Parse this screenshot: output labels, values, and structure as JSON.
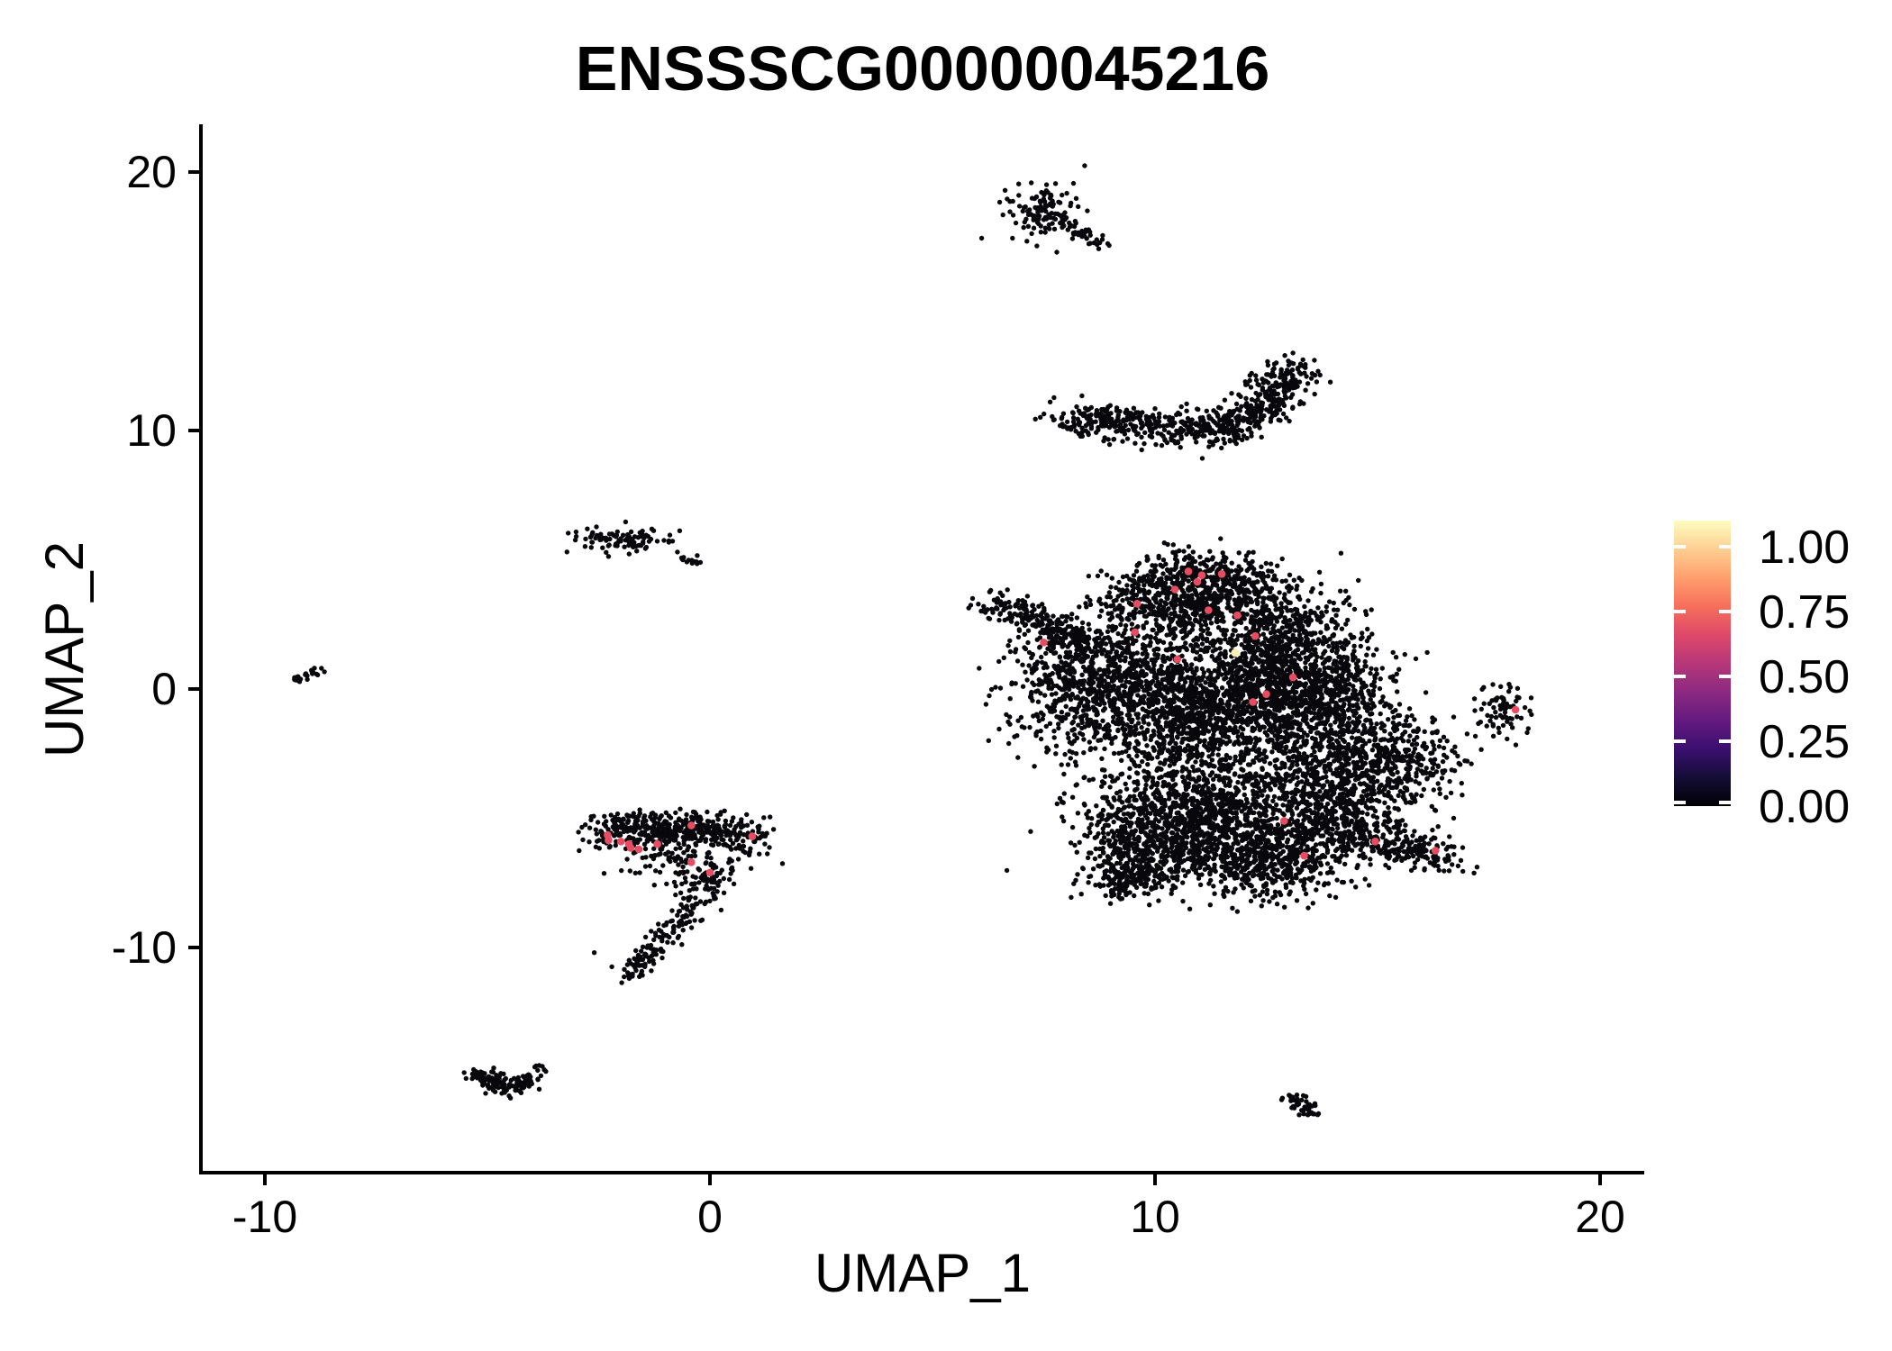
{
  "title": "ENSSSCG00000045216",
  "axes": {
    "x_label": "UMAP_1",
    "y_label": "UMAP_2",
    "x_tick_labels": [
      "-10",
      "0",
      "10",
      "20"
    ],
    "y_tick_labels": [
      "20",
      "10",
      "0",
      "-10"
    ]
  },
  "legend": {
    "tick_labels": [
      "1.00",
      "0.75",
      "0.50",
      "0.25",
      "0.00"
    ]
  },
  "chart_data": {
    "type": "scatter",
    "title": "ENSSSCG00000045216",
    "xlabel": "UMAP_1",
    "ylabel": "UMAP_2",
    "xlim": [
      -11.4,
      21.0
    ],
    "ylim": [
      -18.8,
      21.8
    ],
    "x_tick_values": [
      -10,
      0,
      10,
      20
    ],
    "y_tick_values": [
      20,
      10,
      0,
      -10
    ],
    "grid": false,
    "legend_position": "right",
    "colorbar": {
      "tick_values": [
        1.0,
        0.75,
        0.5,
        0.25,
        0.0
      ],
      "top_value": 1.1,
      "palette": "magma",
      "stops": [
        "#000004",
        "#140e36",
        "#3b0f70",
        "#641a80",
        "#8c2981",
        "#b73779",
        "#de4968",
        "#f76f5c",
        "#fe9f6d",
        "#fecf92",
        "#fcfdbf"
      ]
    },
    "base_point_color": "#08080c",
    "highlight_color": "#E84C62",
    "max_expression_point": {
      "xy": [
        11.8,
        1.4
      ],
      "color": "#FBF2B0",
      "value": 1.0
    },
    "highlighted_points": [
      [
        10.75,
        4.55
      ],
      [
        10.95,
        4.15
      ],
      [
        11.05,
        4.4
      ],
      [
        11.5,
        4.45
      ],
      [
        10.45,
        3.85
      ],
      [
        9.6,
        3.3
      ],
      [
        11.2,
        3.05
      ],
      [
        11.85,
        2.85
      ],
      [
        12.25,
        2.05
      ],
      [
        13.1,
        0.45
      ],
      [
        12.5,
        -0.2
      ],
      [
        12.2,
        -0.5
      ],
      [
        7.5,
        1.8
      ],
      [
        9.55,
        2.2
      ],
      [
        10.5,
        1.15
      ],
      [
        12.9,
        -5.1
      ],
      [
        14.95,
        -5.9
      ],
      [
        13.35,
        -6.45
      ],
      [
        16.3,
        -6.25
      ],
      [
        -2.3,
        -5.65
      ],
      [
        -2.28,
        -5.85
      ],
      [
        -2.0,
        -5.9
      ],
      [
        -1.82,
        -6.0
      ],
      [
        -1.78,
        -6.15
      ],
      [
        -1.6,
        -6.2
      ],
      [
        -1.18,
        -6.0
      ],
      [
        -0.42,
        -5.28
      ],
      [
        0.95,
        -5.7
      ],
      [
        -0.42,
        -6.7
      ],
      [
        0.0,
        -7.1
      ],
      [
        18.1,
        -0.8
      ]
    ],
    "clusters": [
      {
        "name": "top-small-head",
        "type": "blob",
        "c": [
          7.5,
          18.5
        ],
        "s": [
          0.42,
          0.55
        ],
        "n": 120
      },
      {
        "name": "top-small-tail",
        "type": "band",
        "pts": [
          [
            8.0,
            18.0
          ],
          [
            8.85,
            17.15
          ]
        ],
        "th": 0.13,
        "n": 40
      },
      {
        "name": "banana",
        "type": "band",
        "pts": [
          [
            8.0,
            10.55
          ],
          [
            9.0,
            10.35
          ],
          [
            10.0,
            10.15
          ],
          [
            11.0,
            10.0
          ],
          [
            11.8,
            10.2
          ],
          [
            12.4,
            10.9
          ],
          [
            12.9,
            11.9
          ],
          [
            13.05,
            12.5
          ]
        ],
        "th": 0.33,
        "n": 700
      },
      {
        "name": "pair-left",
        "type": "blob",
        "c": [
          -1.9,
          5.75
        ],
        "s": [
          0.5,
          0.28
        ],
        "n": 90
      },
      {
        "name": "pair-right",
        "type": "band",
        "pts": [
          [
            -0.55,
            5.05
          ],
          [
            -0.2,
            4.88
          ]
        ],
        "th": 0.08,
        "n": 15
      },
      {
        "name": "far-left-dot",
        "type": "band",
        "pts": [
          [
            -9.3,
            0.35
          ],
          [
            -8.8,
            0.75
          ]
        ],
        "th": 0.1,
        "n": 25
      },
      {
        "name": "main-beak",
        "type": "band",
        "pts": [
          [
            6.1,
            3.35
          ],
          [
            7.0,
            2.9
          ],
          [
            7.9,
            2.2
          ],
          [
            8.6,
            1.6
          ]
        ],
        "th": 0.28,
        "n": 220
      },
      {
        "name": "main-top-edge",
        "type": "band",
        "pts": [
          [
            9.3,
            3.2
          ],
          [
            10.8,
            4.8
          ],
          [
            11.7,
            4.5
          ],
          [
            12.4,
            3.4
          ]
        ],
        "th": 0.4,
        "n": 300
      },
      {
        "name": "main-top-lobe",
        "type": "blob",
        "c": [
          10.9,
          3.3
        ],
        "s": [
          1.0,
          0.8
        ],
        "n": 600
      },
      {
        "name": "main-topright",
        "type": "blob",
        "c": [
          13.0,
          2.0
        ],
        "s": [
          0.75,
          1.0
        ],
        "n": 350
      },
      {
        "name": "main-left",
        "type": "blob",
        "c": [
          8.9,
          0.6
        ],
        "s": [
          0.85,
          1.1
        ],
        "n": 550
      },
      {
        "name": "main-left-fringe",
        "type": "blob",
        "c": [
          7.7,
          0.2
        ],
        "s": [
          0.6,
          1.2
        ],
        "n": 160
      },
      {
        "name": "main-center",
        "type": "blob",
        "c": [
          10.7,
          -0.9
        ],
        "s": [
          1.25,
          1.35
        ],
        "n": 1300
      },
      {
        "name": "main-center2",
        "type": "blob",
        "c": [
          12.4,
          0.2
        ],
        "s": [
          0.85,
          1.0
        ],
        "n": 550
      },
      {
        "name": "main-right-upper",
        "type": "blob",
        "c": [
          13.9,
          0.5
        ],
        "s": [
          0.7,
          0.85
        ],
        "n": 300
      },
      {
        "name": "main-right",
        "type": "blob",
        "c": [
          13.9,
          -1.8
        ],
        "s": [
          0.9,
          1.2
        ],
        "n": 600
      },
      {
        "name": "main-far-right",
        "type": "blob",
        "c": [
          15.6,
          -2.8
        ],
        "s": [
          0.65,
          1.0
        ],
        "n": 260
      },
      {
        "name": "main-right-mid",
        "type": "blob",
        "c": [
          14.2,
          -4.0
        ],
        "s": [
          0.8,
          0.9
        ],
        "n": 350
      },
      {
        "name": "main-bottom",
        "type": "blob",
        "c": [
          10.9,
          -4.9
        ],
        "s": [
          1.3,
          1.1
        ],
        "n": 1100
      },
      {
        "name": "main-bottom2",
        "type": "blob",
        "c": [
          12.6,
          -6.5
        ],
        "s": [
          0.95,
          0.8
        ],
        "n": 550
      },
      {
        "name": "main-bottom3",
        "type": "blob",
        "c": [
          9.9,
          -6.4
        ],
        "s": [
          0.7,
          0.8
        ],
        "n": 350
      },
      {
        "name": "main-bottom-tail",
        "type": "band",
        "pts": [
          [
            9.6,
            -6.8
          ],
          [
            9.25,
            -7.8
          ]
        ],
        "th": 0.25,
        "n": 90
      },
      {
        "name": "main-right-arm",
        "type": "band",
        "pts": [
          [
            13.6,
            -5.1
          ],
          [
            14.9,
            -5.85
          ],
          [
            16.1,
            -6.3
          ],
          [
            16.65,
            -6.6
          ]
        ],
        "th": 0.38,
        "n": 320
      },
      {
        "name": "small-right",
        "type": "blob",
        "c": [
          17.85,
          -0.8
        ],
        "s": [
          0.3,
          0.55
        ],
        "n": 70
      },
      {
        "name": "seahorse-band",
        "type": "band",
        "pts": [
          [
            -2.55,
            -5.6
          ],
          [
            -1.8,
            -5.3
          ],
          [
            -0.9,
            -5.5
          ],
          [
            -0.1,
            -5.35
          ],
          [
            0.6,
            -5.5
          ],
          [
            1.1,
            -5.9
          ]
        ],
        "th": 0.34,
        "n": 450
      },
      {
        "name": "seahorse-sparse",
        "type": "blob",
        "c": [
          -0.6,
          -6.6
        ],
        "s": [
          0.8,
          0.5
        ],
        "n": 110
      },
      {
        "name": "seahorse-hook",
        "type": "band",
        "pts": [
          [
            0.3,
            -6.9
          ],
          [
            -0.1,
            -7.8
          ],
          [
            -0.6,
            -8.9
          ],
          [
            -1.2,
            -9.9
          ],
          [
            -1.7,
            -10.8
          ],
          [
            -1.95,
            -11.3
          ]
        ],
        "th": 0.2,
        "n": 190
      },
      {
        "name": "swoosh",
        "type": "band",
        "pts": [
          [
            -5.35,
            -14.8
          ],
          [
            -4.9,
            -15.1
          ],
          [
            -4.5,
            -15.45
          ],
          [
            -4.1,
            -15.1
          ],
          [
            -3.85,
            -14.9
          ]
        ],
        "th": 0.17,
        "n": 140
      },
      {
        "name": "bottom-right-small",
        "type": "band",
        "pts": [
          [
            13.0,
            -15.8
          ],
          [
            13.3,
            -16.1
          ],
          [
            13.6,
            -16.5
          ]
        ],
        "th": 0.12,
        "n": 45
      }
    ],
    "stray_points": [
      [
        9.7,
        9.25
      ],
      [
        11.3,
        9.45
      ],
      [
        12.6,
        10.35
      ],
      [
        13.1,
        13.0
      ],
      [
        -0.73,
        5.3
      ],
      [
        5.9,
        3.5
      ],
      [
        6.15,
        3.2
      ],
      [
        16.9,
        -4.1
      ],
      [
        9.0,
        -8.3
      ],
      [
        1.35,
        -4.95
      ],
      [
        0.25,
        -8.55
      ],
      [
        -2.6,
        -10.2
      ]
    ]
  }
}
